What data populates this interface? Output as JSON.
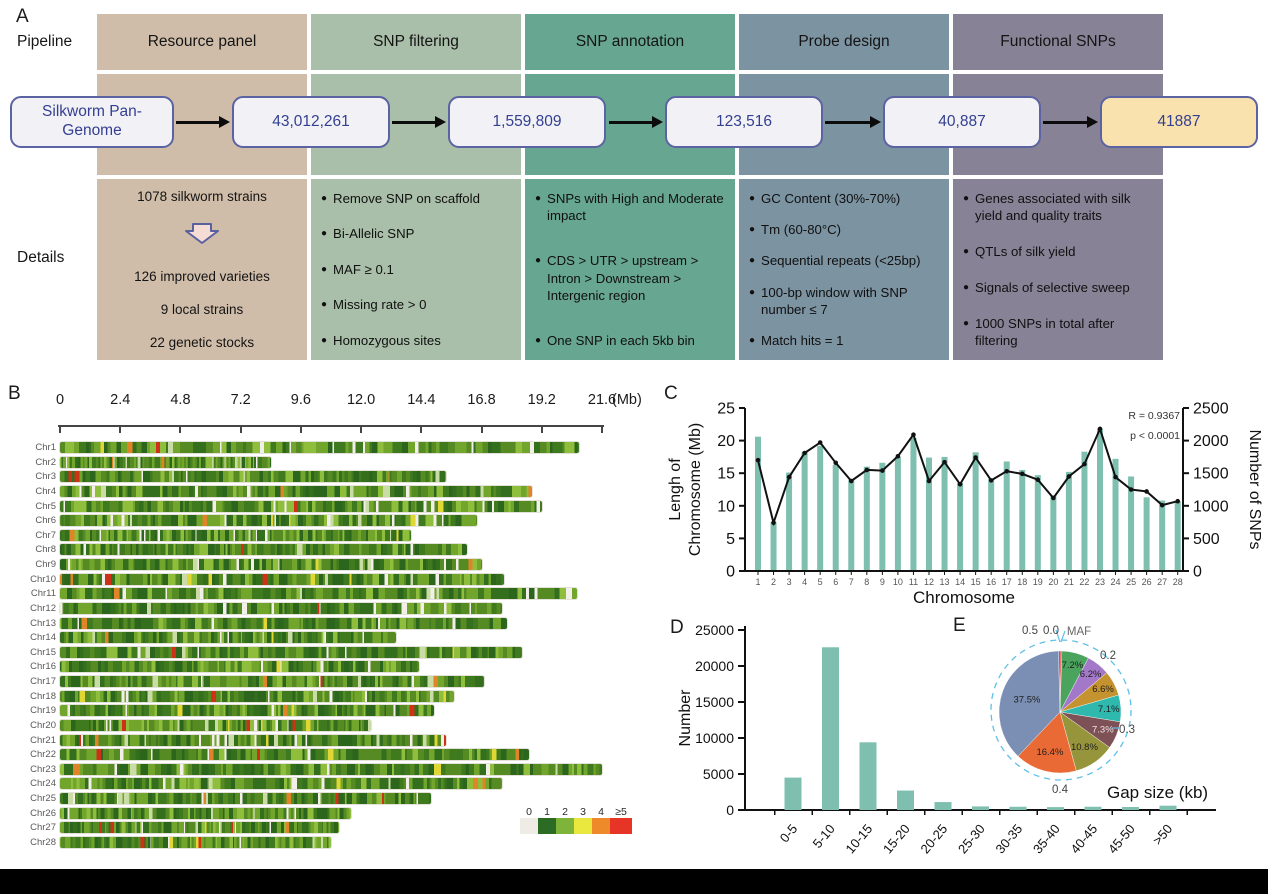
{
  "figure": {
    "panel_labels": {
      "a": "A",
      "b": "B",
      "c": "C",
      "d": "D",
      "e": "E"
    }
  },
  "panel_a": {
    "row_labels": {
      "pipeline": "Pipeline",
      "details": "Details"
    },
    "bullet_glyph": "●",
    "columns": [
      {
        "header": "Resource panel",
        "color": "#d0bda9",
        "resource_lines": [
          "1078 silkworm strains",
          "126 improved varieties",
          "9 local strains",
          "22 genetic stocks"
        ]
      },
      {
        "header": "SNP filtering",
        "color": "#a9bfa9",
        "bullets": [
          "Remove SNP on scaffold",
          "Bi-Allelic SNP",
          "MAF ≥ 0.1",
          "Missing rate > 0",
          "Homozygous sites"
        ]
      },
      {
        "header": "SNP annotation",
        "color": "#67a690",
        "bullets": [
          "SNPs with High and Moderate impact",
          "CDS > UTR > upstream > Intron > Downstream > Intergenic region",
          "One SNP in each 5kb bin"
        ]
      },
      {
        "header": "Probe design",
        "color": "#7c93a2",
        "bullets": [
          "GC Content (30%-70%)",
          "Tm (60-80°C)",
          "Sequential repeats (<25bp)",
          "100-bp window with SNP number ≤ 7",
          "Match hits = 1"
        ]
      },
      {
        "header": "Functional SNPs",
        "color": "#878295",
        "bullets": [
          "Genes associated with silk yield and quality traits",
          "QTLs of silk yield",
          "Signals of selective sweep",
          "1000 SNPs in total after filtering"
        ]
      }
    ],
    "flow": {
      "start_label": "Silkworm Pan-Genome",
      "node_values": [
        "43,012,261",
        "1,559,809",
        "123,516",
        "40,887",
        "41887"
      ],
      "box_bg": "#f2f1f6",
      "final_box_bg": "#f9e2ae",
      "box_border": "#5c63a2",
      "box_text_color": "#333f90"
    }
  },
  "panel_b": {
    "axis_ticks": [
      "0",
      "2.4",
      "4.8",
      "7.2",
      "9.6",
      "12.0",
      "14.4",
      "16.8",
      "19.2",
      "21.6"
    ],
    "axis_unit": "(Mb)",
    "axis_max_mb": 21.6,
    "chromosomes": [
      {
        "name": "Chr1",
        "length_mb": 20.7
      },
      {
        "name": "Chr2",
        "length_mb": 8.4
      },
      {
        "name": "Chr3",
        "length_mb": 15.4
      },
      {
        "name": "Chr4",
        "length_mb": 18.8
      },
      {
        "name": "Chr5",
        "length_mb": 19.2
      },
      {
        "name": "Chr6",
        "length_mb": 16.6
      },
      {
        "name": "Chr7",
        "length_mb": 14.0
      },
      {
        "name": "Chr8",
        "length_mb": 16.2
      },
      {
        "name": "Chr9",
        "length_mb": 16.8
      },
      {
        "name": "Chr10",
        "length_mb": 17.7
      },
      {
        "name": "Chr11",
        "length_mb": 20.6
      },
      {
        "name": "Chr12",
        "length_mb": 17.6
      },
      {
        "name": "Chr13",
        "length_mb": 17.8
      },
      {
        "name": "Chr14",
        "length_mb": 13.4
      },
      {
        "name": "Chr15",
        "length_mb": 18.4
      },
      {
        "name": "Chr16",
        "length_mb": 14.3
      },
      {
        "name": "Chr17",
        "length_mb": 16.9
      },
      {
        "name": "Chr18",
        "length_mb": 15.7
      },
      {
        "name": "Chr19",
        "length_mb": 14.9
      },
      {
        "name": "Chr20",
        "length_mb": 12.4
      },
      {
        "name": "Chr21",
        "length_mb": 15.4
      },
      {
        "name": "Chr22",
        "length_mb": 18.7
      },
      {
        "name": "Chr23",
        "length_mb": 21.6
      },
      {
        "name": "Chr24",
        "length_mb": 17.6
      },
      {
        "name": "Chr25",
        "length_mb": 14.8
      },
      {
        "name": "Chr26",
        "length_mb": 11.6
      },
      {
        "name": "Chr27",
        "length_mb": 11.1
      },
      {
        "name": "Chr28",
        "length_mb": 10.8
      }
    ],
    "legend": {
      "labels": [
        "0",
        "1",
        "2",
        "3",
        "4",
        "≥5"
      ],
      "colors": [
        "#efece6",
        "#2c6b24",
        "#7eb43a",
        "#eae73f",
        "#ef8a2b",
        "#e63426"
      ]
    }
  },
  "chart_data": [
    {
      "id": "panel_c",
      "type": "bar+line",
      "categories": [
        1,
        2,
        3,
        4,
        5,
        6,
        7,
        8,
        9,
        10,
        11,
        12,
        13,
        14,
        15,
        16,
        17,
        18,
        19,
        20,
        21,
        22,
        23,
        24,
        25,
        26,
        27,
        28
      ],
      "series": [
        {
          "name": "Length of Chromosome (Mb)",
          "type": "bar",
          "axis": "left",
          "values": [
            20.6,
            7.5,
            15.1,
            18.3,
            19.2,
            16.3,
            14.0,
            16.0,
            16.6,
            17.5,
            20.4,
            17.4,
            17.5,
            13.5,
            18.2,
            14.1,
            16.8,
            15.5,
            14.7,
            11.5,
            15.2,
            18.3,
            21.8,
            17.2,
            14.5,
            11.3,
            10.8,
            10.7
          ]
        },
        {
          "name": "Number of SNPs",
          "type": "line",
          "axis": "right",
          "values": [
            1700,
            740,
            1440,
            1810,
            1970,
            1660,
            1380,
            1550,
            1540,
            1760,
            2090,
            1380,
            1670,
            1330,
            1740,
            1390,
            1530,
            1490,
            1400,
            1120,
            1450,
            1640,
            2180,
            1440,
            1250,
            1220,
            1010,
            1070
          ]
        }
      ],
      "ylabel_left_lines": [
        "Lengh of",
        "Chromosome (Mb)"
      ],
      "ylabel_right": "Number of SNPs",
      "xlabel": "Chromosome",
      "ylim_left": [
        0,
        25
      ],
      "yticks_left": [
        0,
        5,
        10,
        15,
        20,
        25
      ],
      "ylim_right": [
        0,
        2500
      ],
      "yticks_right": [
        0,
        500,
        1000,
        1500,
        2000,
        2500
      ],
      "annotations": [
        "R = 0.9367",
        "p < 0.0001"
      ],
      "bar_color": "#7ebfb0",
      "line_color": "#111111",
      "grid": false
    },
    {
      "id": "panel_d",
      "type": "bar",
      "categories": [
        "0-5",
        "5-10",
        "10-15",
        "15-20",
        "20-25",
        "25-30",
        "30-35",
        "35-40",
        "40-45",
        "45-50",
        ">50"
      ],
      "values": [
        4500,
        22600,
        9400,
        2700,
        1100,
        500,
        450,
        400,
        450,
        420,
        600
      ],
      "ylabel": "Number",
      "xlabel": "Gap size (kb)",
      "ylim": [
        0,
        25000
      ],
      "yticks": [
        0,
        5000,
        10000,
        15000,
        20000,
        25000
      ],
      "bar_color": "#7ebfb0",
      "grid": false
    },
    {
      "id": "panel_e",
      "type": "pie",
      "title": "MAF",
      "slices": [
        {
          "label": "",
          "value": 0.5,
          "color": "#e23b36",
          "label_color": "#1f1f1f"
        },
        {
          "label": "7.2%",
          "value": 7.2,
          "color": "#4aa45e",
          "label_color": "#1f1f1f"
        },
        {
          "label": "6.2%",
          "value": 6.2,
          "color": "#a478c8",
          "label_color": "#1f1f1f"
        },
        {
          "label": "6.6%",
          "value": 6.6,
          "color": "#c4922f",
          "label_color": "#1f1f1f"
        },
        {
          "label": "7.1%",
          "value": 7.1,
          "color": "#2fb8ad",
          "label_color": "#1f1f1f"
        },
        {
          "label": "7.3%",
          "value": 7.3,
          "color": "#7e5156",
          "label_color": "#f2e3e3"
        },
        {
          "label": "10.8%",
          "value": 10.8,
          "color": "#97953c",
          "label_color": "#1f1f1f"
        },
        {
          "label": "16.4%",
          "value": 16.4,
          "color": "#e96a35",
          "label_color": "#1f1f1f"
        },
        {
          "label": "37.5%",
          "value": 37.5,
          "color": "#7b8fb4",
          "label_color": "#1f1f1f"
        },
        {
          "label": "",
          "value": 0.4,
          "color": "#3a52c4",
          "label_color": "#1f1f1f"
        }
      ],
      "scale_labels": {
        "top_left": "0.5",
        "top_right": "0.0",
        "title": "MAF",
        "right_upper": "0.2",
        "right_lower": "0.3",
        "bottom": "0.4"
      },
      "ring_color": "#5fc0e8"
    }
  ]
}
